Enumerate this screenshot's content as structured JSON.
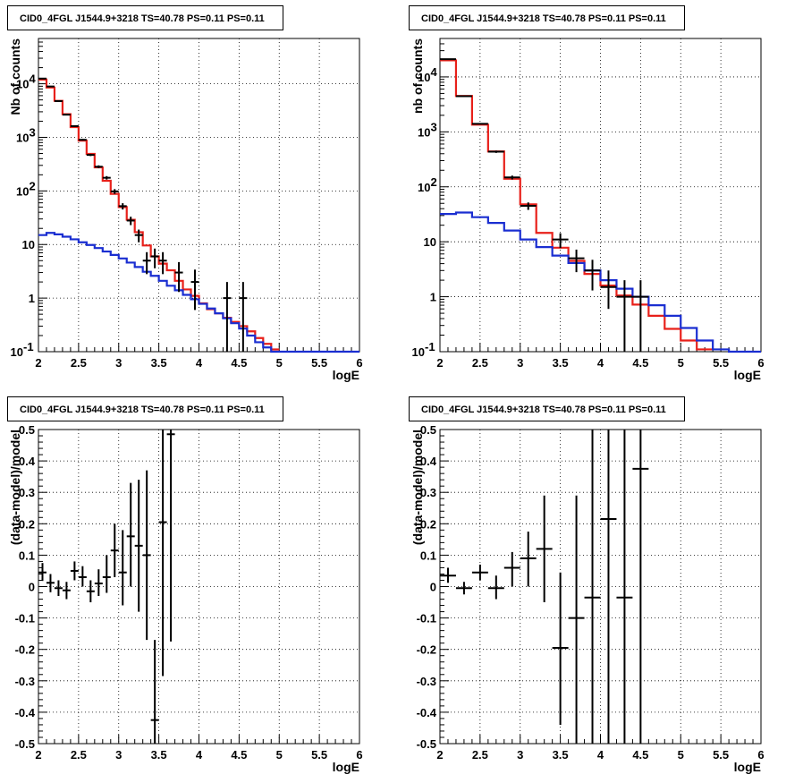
{
  "chart_data": [
    {
      "type": "line",
      "panel": "top-left",
      "title": "CID0_4FGL J1544.9+3218 TS=40.78 PS=0.11 PS=0.11",
      "xlabel": "logE",
      "ylabel": "Nb of counts",
      "xlim": [
        2,
        6
      ],
      "ylim": [
        0.1,
        70000
      ],
      "yscale": "log",
      "grid": true,
      "x_ticks": [
        "2",
        "2.5",
        "3",
        "3.5",
        "4",
        "4.5",
        "5",
        "5.5",
        "6"
      ],
      "y_ticks": [
        {
          "value": 0.1,
          "label": "10",
          "exp": "-1"
        },
        {
          "value": 1,
          "label": "1",
          "exp": ""
        },
        {
          "value": 10,
          "label": "10",
          "exp": ""
        },
        {
          "value": 100,
          "label": "10",
          "exp": "2"
        },
        {
          "value": 1000,
          "label": "10",
          "exp": "3"
        },
        {
          "value": 10000,
          "label": "10",
          "exp": "4"
        }
      ],
      "series": [
        {
          "color": "#e8201a",
          "style": "step",
          "edges": [
            2.0,
            2.1,
            2.2,
            2.3,
            2.4,
            2.5,
            2.6,
            2.7,
            2.8,
            2.9,
            3.0,
            3.1,
            3.2,
            3.3,
            3.4,
            3.5,
            3.6,
            3.7,
            3.8,
            3.9,
            4.0,
            4.1,
            4.2,
            4.3,
            4.4,
            4.5,
            4.6,
            4.7,
            4.8,
            4.9,
            5.0
          ],
          "values": [
            12000,
            8500,
            4800,
            2700,
            1550,
            870,
            490,
            275,
            155,
            88,
            50,
            29,
            17,
            9.6,
            6.0,
            4.4,
            3.3,
            2.1,
            1.45,
            1.1,
            0.8,
            0.62,
            0.52,
            0.43,
            0.36,
            0.3,
            0.24,
            0.18,
            0.14,
            0.11
          ]
        },
        {
          "color": "#1a2ed1",
          "style": "step",
          "edges": [
            2.0,
            2.1,
            2.2,
            2.3,
            2.4,
            2.5,
            2.6,
            2.7,
            2.8,
            2.9,
            3.0,
            3.1,
            3.2,
            3.3,
            3.4,
            3.5,
            3.6,
            3.7,
            3.8,
            3.9,
            4.0,
            4.1,
            4.2,
            4.3,
            4.4,
            4.5,
            4.6,
            4.7,
            4.8,
            4.9,
            5.0,
            5.1,
            5.2,
            5.3,
            5.4,
            5.5,
            5.6,
            5.7,
            5.8,
            5.9,
            6.0
          ],
          "values": [
            15,
            16.5,
            15.5,
            14,
            12.5,
            11,
            9.8,
            8.6,
            7.4,
            6.4,
            5.5,
            4.6,
            3.8,
            3.1,
            2.6,
            2.1,
            1.7,
            1.4,
            1.15,
            0.95,
            0.78,
            0.64,
            0.52,
            0.42,
            0.34,
            0.27,
            0.2,
            0.15,
            0.12,
            0.1,
            0.1,
            0.1,
            0.1,
            0.1,
            0.1,
            0.1,
            0.1,
            0.1,
            0.1,
            0.1
          ]
        }
      ],
      "points": [
        {
          "x": 2.05,
          "y": 12500,
          "xerr": 0.05,
          "ylo": 12388,
          "yhi": 12612
        },
        {
          "x": 2.15,
          "y": 8900,
          "xerr": 0.05,
          "ylo": 8806,
          "yhi": 8994
        },
        {
          "x": 2.25,
          "y": 4750,
          "xerr": 0.05,
          "ylo": 4681,
          "yhi": 4819
        },
        {
          "x": 2.35,
          "y": 2650,
          "xerr": 0.05,
          "ylo": 2599,
          "yhi": 2701
        },
        {
          "x": 2.45,
          "y": 1620,
          "xerr": 0.05,
          "ylo": 1580,
          "yhi": 1660
        },
        {
          "x": 2.55,
          "y": 900,
          "xerr": 0.05,
          "ylo": 870,
          "yhi": 930
        },
        {
          "x": 2.65,
          "y": 470,
          "xerr": 0.05,
          "ylo": 448,
          "yhi": 492
        },
        {
          "x": 2.75,
          "y": 283,
          "xerr": 0.05,
          "ylo": 266,
          "yhi": 300
        },
        {
          "x": 2.85,
          "y": 176,
          "xerr": 0.05,
          "ylo": 163,
          "yhi": 189
        },
        {
          "x": 2.95,
          "y": 98,
          "xerr": 0.05,
          "ylo": 88,
          "yhi": 108
        },
        {
          "x": 3.05,
          "y": 52,
          "xerr": 0.05,
          "ylo": 45,
          "yhi": 59
        },
        {
          "x": 3.15,
          "y": 28,
          "xerr": 0.05,
          "ylo": 23,
          "yhi": 33
        },
        {
          "x": 3.25,
          "y": 15,
          "xerr": 0.05,
          "ylo": 11,
          "yhi": 19
        },
        {
          "x": 3.35,
          "y": 5,
          "xerr": 0.05,
          "ylo": 2.8,
          "yhi": 7.2
        },
        {
          "x": 3.45,
          "y": 6,
          "xerr": 0.05,
          "ylo": 3.6,
          "yhi": 8.4
        },
        {
          "x": 3.55,
          "y": 5,
          "xerr": 0.05,
          "ylo": 2.8,
          "yhi": 7.2
        },
        {
          "x": 3.75,
          "y": 3,
          "xerr": 0.05,
          "ylo": 1.3,
          "yhi": 4.7
        },
        {
          "x": 3.95,
          "y": 2,
          "xerr": 0.05,
          "ylo": 0.6,
          "yhi": 3.4
        },
        {
          "x": 4.35,
          "y": 1,
          "xerr": 0.05,
          "ylo": 0.1,
          "yhi": 2.0
        },
        {
          "x": 4.55,
          "y": 1,
          "xerr": 0.05,
          "ylo": 0.1,
          "yhi": 2.0
        }
      ]
    },
    {
      "type": "line",
      "panel": "top-right",
      "title": "CID0_4FGL J1544.9+3218 TS=40.78 PS=0.11 PS=0.11",
      "xlabel": "logE",
      "ylabel": "nb of counts",
      "xlim": [
        2,
        6
      ],
      "ylim": [
        0.1,
        50000
      ],
      "yscale": "log",
      "grid": true,
      "x_ticks": [
        "2",
        "2.5",
        "3",
        "3.5",
        "4",
        "4.5",
        "5",
        "5.5",
        "6"
      ],
      "y_ticks": [
        {
          "value": 0.1,
          "label": "10",
          "exp": "-1"
        },
        {
          "value": 1,
          "label": "1",
          "exp": ""
        },
        {
          "value": 10,
          "label": "10",
          "exp": ""
        },
        {
          "value": 100,
          "label": "10",
          "exp": "2"
        },
        {
          "value": 1000,
          "label": "10",
          "exp": "3"
        },
        {
          "value": 10000,
          "label": "10",
          "exp": "4"
        }
      ],
      "series": [
        {
          "color": "#e8201a",
          "style": "step",
          "edges": [
            2.0,
            2.2,
            2.4,
            2.6,
            2.8,
            3.0,
            3.2,
            3.4,
            3.6,
            3.8,
            4.0,
            4.2,
            4.4,
            4.6,
            4.8,
            5.0,
            5.2,
            5.4
          ],
          "values": [
            20000,
            4500,
            1350,
            440,
            140,
            48,
            14.5,
            7.8,
            4.5,
            2.6,
            1.6,
            1.05,
            0.72,
            0.45,
            0.26,
            0.16,
            0.11
          ]
        },
        {
          "color": "#1a2ed1",
          "style": "step",
          "edges": [
            2.0,
            2.2,
            2.4,
            2.6,
            2.8,
            3.0,
            3.2,
            3.4,
            3.6,
            3.8,
            4.0,
            4.2,
            4.4,
            4.6,
            4.8,
            5.0,
            5.2,
            5.4,
            5.6,
            5.8,
            6.0
          ],
          "values": [
            32,
            34,
            28,
            22,
            16,
            11,
            8,
            5.6,
            4.1,
            3.0,
            2.0,
            1.4,
            1.0,
            0.7,
            0.45,
            0.27,
            0.16,
            0.11,
            0.1,
            0.1
          ]
        }
      ],
      "points": [
        {
          "x": 2.1,
          "y": 21000,
          "xerr": 0.1,
          "ylo": 20850,
          "yhi": 21150
        },
        {
          "x": 2.3,
          "y": 4450,
          "xerr": 0.1,
          "ylo": 4383,
          "yhi": 4517
        },
        {
          "x": 2.5,
          "y": 1400,
          "xerr": 0.1,
          "ylo": 1363,
          "yhi": 1437
        },
        {
          "x": 2.7,
          "y": 435,
          "xerr": 0.1,
          "ylo": 414,
          "yhi": 456
        },
        {
          "x": 2.9,
          "y": 148,
          "xerr": 0.1,
          "ylo": 136,
          "yhi": 160
        },
        {
          "x": 3.1,
          "y": 45,
          "xerr": 0.1,
          "ylo": 38,
          "yhi": 52
        },
        {
          "x": 3.5,
          "y": 11,
          "xerr": 0.1,
          "ylo": 7.7,
          "yhi": 14.3
        },
        {
          "x": 3.7,
          "y": 5,
          "xerr": 0.1,
          "ylo": 2.8,
          "yhi": 7.2
        },
        {
          "x": 3.9,
          "y": 3,
          "xerr": 0.1,
          "ylo": 1.3,
          "yhi": 4.7
        },
        {
          "x": 4.1,
          "y": 1.5,
          "xerr": 0.1,
          "ylo": 0.6,
          "yhi": 3.0
        },
        {
          "x": 4.3,
          "y": 1,
          "xerr": 0.1,
          "ylo": 0.1,
          "yhi": 2.0
        },
        {
          "x": 4.5,
          "y": 1,
          "xerr": 0.1,
          "ylo": 0.1,
          "yhi": 2.0
        }
      ]
    },
    {
      "type": "scatter",
      "panel": "bottom-left",
      "title": "CID0_4FGL J1544.9+3218 TS=40.78 PS=0.11 PS=0.11",
      "xlabel": "logE",
      "ylabel": "(data-model)/model",
      "xlim": [
        2,
        6
      ],
      "ylim": [
        -0.5,
        0.5
      ],
      "yscale": "linear",
      "grid": true,
      "x_ticks": [
        "2",
        "2.5",
        "3",
        "3.5",
        "4",
        "4.5",
        "5",
        "5.5",
        "6"
      ],
      "y_ticks": [
        {
          "value": -0.5,
          "label": "-0.5"
        },
        {
          "value": -0.4,
          "label": "-0.4"
        },
        {
          "value": -0.3,
          "label": "-0.3"
        },
        {
          "value": -0.2,
          "label": "-0.2"
        },
        {
          "value": -0.1,
          "label": "-0.1"
        },
        {
          "value": 0,
          "label": "0"
        },
        {
          "value": 0.1,
          "label": "0.1"
        },
        {
          "value": 0.2,
          "label": "0.2"
        },
        {
          "value": 0.3,
          "label": "0.3"
        },
        {
          "value": 0.4,
          "label": "0.4"
        },
        {
          "value": 0.5,
          "label": "0.5"
        }
      ],
      "points": [
        {
          "x": 2.05,
          "y": 0.045,
          "xerr": 0.05,
          "ylo": 0.018,
          "yhi": 0.075
        },
        {
          "x": 2.15,
          "y": 0.012,
          "xerr": 0.05,
          "ylo": -0.018,
          "yhi": 0.04
        },
        {
          "x": 2.25,
          "y": -0.005,
          "xerr": 0.05,
          "ylo": -0.03,
          "yhi": 0.02
        },
        {
          "x": 2.35,
          "y": -0.012,
          "xerr": 0.05,
          "ylo": -0.04,
          "yhi": 0.015
        },
        {
          "x": 2.45,
          "y": 0.05,
          "xerr": 0.05,
          "ylo": 0.02,
          "yhi": 0.08
        },
        {
          "x": 2.55,
          "y": 0.03,
          "xerr": 0.05,
          "ylo": 0.0,
          "yhi": 0.065
        },
        {
          "x": 2.65,
          "y": -0.015,
          "xerr": 0.05,
          "ylo": -0.05,
          "yhi": 0.02
        },
        {
          "x": 2.75,
          "y": 0.01,
          "xerr": 0.05,
          "ylo": -0.03,
          "yhi": 0.055
        },
        {
          "x": 2.85,
          "y": 0.03,
          "xerr": 0.05,
          "ylo": -0.02,
          "yhi": 0.1
        },
        {
          "x": 2.95,
          "y": 0.115,
          "xerr": 0.05,
          "ylo": 0.03,
          "yhi": 0.2
        },
        {
          "x": 3.05,
          "y": 0.045,
          "xerr": 0.05,
          "ylo": -0.06,
          "yhi": 0.18
        },
        {
          "x": 3.15,
          "y": 0.16,
          "xerr": 0.05,
          "ylo": 0.0,
          "yhi": 0.33
        },
        {
          "x": 3.25,
          "y": 0.13,
          "xerr": 0.05,
          "ylo": -0.08,
          "yhi": 0.34
        },
        {
          "x": 3.35,
          "y": 0.1,
          "xerr": 0.05,
          "ylo": -0.17,
          "yhi": 0.37
        },
        {
          "x": 3.45,
          "y": -0.425,
          "xerr": 0.05,
          "ylo": -0.5,
          "yhi": -0.17
        },
        {
          "x": 3.55,
          "y": 0.205,
          "xerr": 0.05,
          "ylo": -0.285,
          "yhi": 0.5
        },
        {
          "x": 3.65,
          "y": 0.485,
          "xerr": 0.05,
          "ylo": -0.175,
          "yhi": 0.5
        }
      ]
    },
    {
      "type": "scatter",
      "panel": "bottom-right",
      "title": "CID0_4FGL J1544.9+3218 TS=40.78 PS=0.11 PS=0.11",
      "xlabel": "logE",
      "ylabel": "(data-model)/model",
      "xlim": [
        2,
        6
      ],
      "ylim": [
        -0.5,
        0.5
      ],
      "yscale": "linear",
      "grid": true,
      "x_ticks": [
        "2",
        "2.5",
        "3",
        "3.5",
        "4",
        "4.5",
        "5",
        "5.5",
        "6"
      ],
      "y_ticks": [
        {
          "value": -0.5,
          "label": "-0.5"
        },
        {
          "value": -0.4,
          "label": "-0.4"
        },
        {
          "value": -0.3,
          "label": "-0.3"
        },
        {
          "value": -0.2,
          "label": "-0.2"
        },
        {
          "value": -0.1,
          "label": "-0.1"
        },
        {
          "value": 0,
          "label": "0"
        },
        {
          "value": 0.1,
          "label": "0.1"
        },
        {
          "value": 0.2,
          "label": "0.2"
        },
        {
          "value": 0.3,
          "label": "0.3"
        },
        {
          "value": 0.4,
          "label": "0.4"
        },
        {
          "value": 0.5,
          "label": "0.5"
        }
      ],
      "points": [
        {
          "x": 2.1,
          "y": 0.035,
          "xerr": 0.1,
          "ylo": 0.012,
          "yhi": 0.06
        },
        {
          "x": 2.3,
          "y": -0.005,
          "xerr": 0.1,
          "ylo": -0.025,
          "yhi": 0.015
        },
        {
          "x": 2.5,
          "y": 0.045,
          "xerr": 0.1,
          "ylo": 0.02,
          "yhi": 0.07
        },
        {
          "x": 2.7,
          "y": -0.005,
          "xerr": 0.1,
          "ylo": -0.04,
          "yhi": 0.035
        },
        {
          "x": 2.9,
          "y": 0.06,
          "xerr": 0.1,
          "ylo": 0.0,
          "yhi": 0.11
        },
        {
          "x": 3.1,
          "y": 0.09,
          "xerr": 0.1,
          "ylo": 0.0,
          "yhi": 0.175
        },
        {
          "x": 3.3,
          "y": 0.12,
          "xerr": 0.1,
          "ylo": -0.05,
          "yhi": 0.29
        },
        {
          "x": 3.5,
          "y": -0.195,
          "xerr": 0.1,
          "ylo": -0.44,
          "yhi": 0.045
        },
        {
          "x": 3.7,
          "y": -0.1,
          "xerr": 0.1,
          "ylo": -0.5,
          "yhi": 0.29
        },
        {
          "x": 3.9,
          "y": -0.035,
          "xerr": 0.1,
          "ylo": -0.5,
          "yhi": 0.5
        },
        {
          "x": 4.1,
          "y": 0.215,
          "xerr": 0.1,
          "ylo": -0.5,
          "yhi": 0.5
        },
        {
          "x": 4.3,
          "y": -0.035,
          "xerr": 0.1,
          "ylo": -0.5,
          "yhi": 0.5
        },
        {
          "x": 4.5,
          "y": 0.375,
          "xerr": 0.1,
          "ylo": -0.5,
          "yhi": 0.5
        }
      ]
    }
  ]
}
